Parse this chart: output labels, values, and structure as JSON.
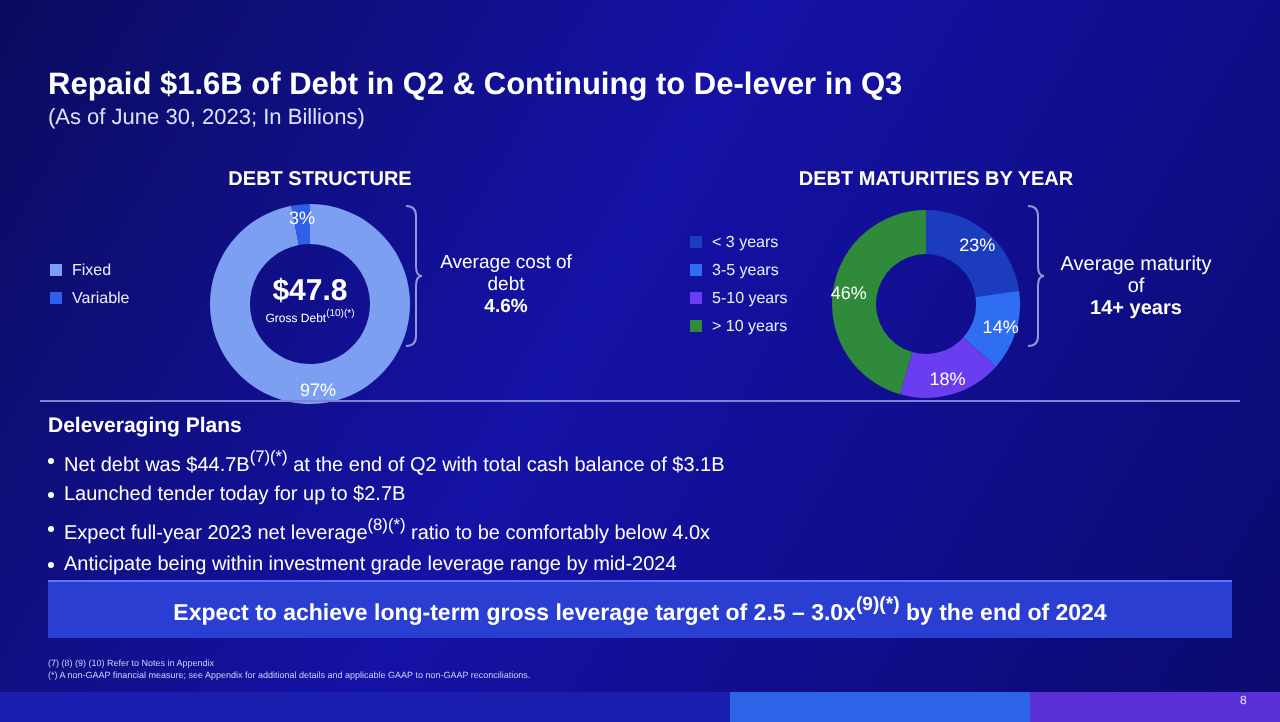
{
  "chart_data": [
    {
      "type": "other",
      "title": "Repaid $1.6B of Debt in Q2 & Continuing to De-lever in Q3",
      "subtitle": "(As of June 30, 2023; In Billions)"
    },
    {
      "type": "donut",
      "title": "DEBT STRUCTURE",
      "categories": [
        "Fixed",
        "Variable"
      ],
      "values": [
        97,
        3
      ],
      "colors": [
        "#7d9ff2",
        "#2d5fe8"
      ],
      "value_labels": [
        "97%",
        "3%"
      ],
      "legend": "left",
      "annotations": [
        "$47.8",
        "Gross Debt$^{(10)(*)}$",
        "Average cost of debt",
        "4.6%"
      ]
    },
    {
      "type": "donut",
      "title": "DEBT MATURITIES BY YEAR",
      "categories": [
        "< 3 years",
        "3-5 years",
        "5-10 years",
        "> 10 years"
      ],
      "values": [
        23,
        14,
        18,
        46
      ],
      "colors": [
        "#1c3cc0",
        "#2f6ef2",
        "#6a3ef0",
        "#2f8a3c"
      ],
      "value_labels": [
        "23%",
        "14%",
        "18%",
        "46%"
      ],
      "legend": "left",
      "annotations": [
        "Average maturity of",
        "14+ years"
      ]
    },
    {
      "type": "other",
      "title": "Deleveraging Plans",
      "annotations": [
        "Net debt was $44.7B$^{(7)(*)}$ at the end of Q2 with total cash balance of $3.1B",
        "Launched tender today for up to $2.7B",
        "Expect full-year 2023 net leverage$^{(8)(*)}$ ratio to be comfortably below 4.0x",
        "Anticipate being within investment grade leverage range by mid-2024",
        "Expect to achieve long-term gross leverage target of 2.5 – 3.0x$^{(9)(*)}$ by the end of 2024",
        "(7) (8) (9) (10) Refer to Notes in Appendix",
        "(*) A non-GAAP financial measure; see Appendix for additional details and applicable GAAP to non-GAAP reconciliations.",
        "8"
      ]
    }
  ]
}
